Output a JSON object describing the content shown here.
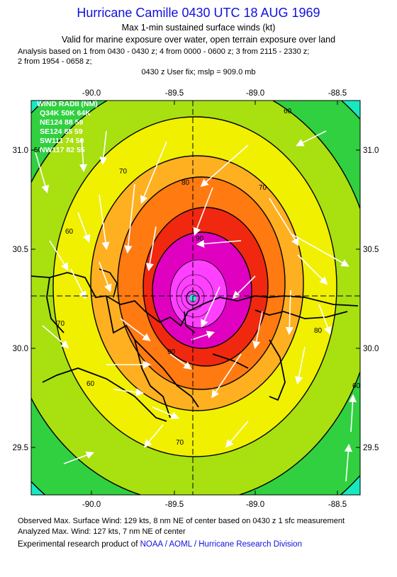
{
  "header": {
    "title": "Hurricane Camille 0430 UTC 18 AUG 1969",
    "line1": "Max 1-min sustained surface winds (kt)",
    "line2": "Valid for marine exposure over water, open terrain exposure over land",
    "analysis1": "Analysis based on  1 from 0430 - 0430 z;  4 from 0000 - 0600 z;  3 from 2115 - 2330 z;",
    "analysis2": "2 from 1954 - 0658 z;",
    "userfix": "0430 z User fix; mslp = 909.0 mb"
  },
  "axes": {
    "lon_ticks": [
      "-90.0",
      "-89.5",
      "-89.0",
      "-88.5"
    ],
    "lat_ticks": [
      "31.0",
      "30.5",
      "30.0",
      "29.5"
    ]
  },
  "wind_radii": {
    "title": "WIND RADII (NM)",
    "header": "Q34K 50K 64K",
    "rows": [
      {
        "quad": "NE",
        "r34": 124,
        "r50": 88,
        "r64": 59
      },
      {
        "quad": "SE",
        "r34": 124,
        "r50": 85,
        "r64": 59
      },
      {
        "quad": "SW",
        "r34": 111,
        "r50": 74,
        "r64": 50
      },
      {
        "quad": "NW",
        "r34": 117,
        "r50": 82,
        "r64": 55
      }
    ]
  },
  "contour_labels": [
    "80",
    "90",
    "70",
    "60",
    "50",
    "70",
    "60",
    "70",
    "90",
    "60",
    "70",
    "60",
    "80"
  ],
  "colors": {
    "title": "#1010e0",
    "lt60": "#18e8c0",
    "k60": "#30d040",
    "k65": "#a8e010",
    "k70": "#f0f000",
    "k75": "#ffb020",
    "k80": "#ff7a10",
    "k85": "#f02810",
    "k90": "#e000c0",
    "k100": "#ff40ff"
  },
  "footer": {
    "observed": "Observed Max. Surface Wind: 129 kts, 8 nm NE of center based on 0430 z 1 sfc measurement",
    "analyzed": "Analyzed Max. Wind: 127 kts, 7 nm NE of center",
    "credit_prefix": "Experimental research product of ",
    "credit_link": "NOAA / AOML / Hurricane Research Division"
  }
}
